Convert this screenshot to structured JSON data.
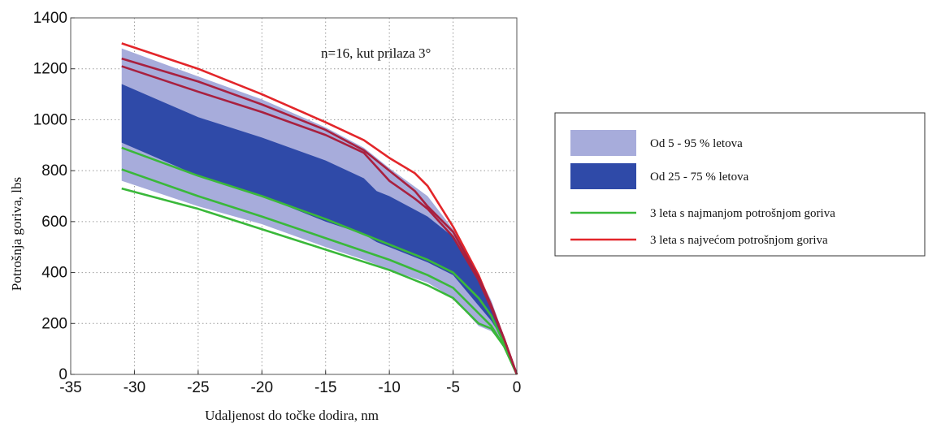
{
  "chart_data": {
    "type": "area",
    "annotation": "n=16, kut prilaza 3°",
    "xlabel": "Udaljenost do točke dodira, nm",
    "ylabel": "Potrošnja goriva, lbs",
    "xlim": [
      -35,
      0
    ],
    "ylim": [
      0,
      1400
    ],
    "xticks": [
      -35,
      -30,
      -25,
      -20,
      -15,
      -10,
      -5,
      0
    ],
    "yticks": [
      0,
      200,
      400,
      600,
      800,
      1000,
      1200,
      1400
    ],
    "grid": true,
    "legend_position": "right, outside plot",
    "bands": [
      {
        "name": "Od 5 - 95 % letova",
        "color": "#a7acdb",
        "x": [
          -31,
          -25,
          -20,
          -15,
          -12,
          -10,
          -7,
          -5,
          -3,
          -2,
          -1,
          0
        ],
        "upper": [
          1280,
          1170,
          1080,
          970,
          890,
          810,
          700,
          570,
          390,
          290,
          150,
          0
        ],
        "lower": [
          760,
          660,
          590,
          500,
          450,
          410,
          360,
          300,
          190,
          170,
          110,
          0
        ]
      },
      {
        "name": "Od 25 - 75 % letova",
        "color": "#2f4aa8",
        "x": [
          -31,
          -25,
          -20,
          -15,
          -12,
          -11,
          -10,
          -7,
          -5,
          -3,
          -2,
          -1,
          0
        ],
        "upper": [
          1140,
          1010,
          930,
          840,
          770,
          720,
          700,
          620,
          540,
          380,
          280,
          150,
          0
        ],
        "lower": [
          910,
          780,
          700,
          600,
          550,
          520,
          500,
          440,
          390,
          270,
          210,
          130,
          0
        ]
      }
    ],
    "series": [
      {
        "group": "3 leta s najmanjom potrošnjom goriva",
        "color": "#3ab83a",
        "x": [
          -31,
          -25,
          -20,
          -15,
          -10,
          -7,
          -5,
          -3,
          -2,
          -1,
          0
        ],
        "y": [
          890,
          780,
          700,
          610,
          510,
          450,
          400,
          300,
          230,
          120,
          0
        ]
      },
      {
        "group": "3 leta s najmanjom potrošnjom goriva",
        "color": "#3ab83a",
        "x": [
          -31,
          -25,
          -20,
          -15,
          -10,
          -7,
          -5,
          -3,
          -2,
          -1,
          0
        ],
        "y": [
          805,
          700,
          620,
          535,
          450,
          390,
          340,
          240,
          190,
          110,
          0
        ]
      },
      {
        "group": "3 leta s najmanjom potrošnjom goriva",
        "color": "#3ab83a",
        "x": [
          -31,
          -25,
          -20,
          -15,
          -10,
          -7,
          -5,
          -4,
          -3,
          -2,
          -1,
          0
        ],
        "y": [
          730,
          650,
          570,
          490,
          410,
          350,
          300,
          250,
          200,
          180,
          110,
          0
        ]
      },
      {
        "group": "3 leta s najvećom potrošnjom goriva",
        "color": "#e3262a",
        "x": [
          -31,
          -25,
          -20,
          -15,
          -12,
          -10,
          -8,
          -7,
          -5,
          -3,
          -2,
          -1,
          0
        ],
        "y": [
          1300,
          1200,
          1100,
          990,
          920,
          850,
          790,
          740,
          580,
          390,
          270,
          140,
          0
        ]
      },
      {
        "group": "3 leta s najvećom potrošnjom goriva",
        "color": "#a8203f",
        "x": [
          -31,
          -25,
          -20,
          -15,
          -12,
          -10,
          -8,
          -7,
          -5,
          -3,
          -2,
          -1,
          0
        ],
        "y": [
          1240,
          1150,
          1060,
          960,
          880,
          800,
          720,
          660,
          560,
          380,
          270,
          140,
          0
        ]
      },
      {
        "group": "3 leta s najvećom potrošnjom goriva",
        "color": "#a8203f",
        "x": [
          -31,
          -25,
          -20,
          -15,
          -12,
          -10,
          -8,
          -7,
          -5,
          -3,
          -2,
          -1,
          0
        ],
        "y": [
          1210,
          1110,
          1030,
          940,
          870,
          760,
          690,
          650,
          540,
          370,
          260,
          140,
          0
        ]
      }
    ]
  },
  "legend": {
    "items": [
      {
        "label": "Od 5 - 95 % letova",
        "kind": "band",
        "color": "#a7acdb"
      },
      {
        "label": "Od 25 - 75 % letova",
        "kind": "band",
        "color": "#2f4aa8"
      },
      {
        "label": "3 leta s najmanjom potrošnjom goriva",
        "kind": "line",
        "color": "#3ab83a"
      },
      {
        "label": "3 leta s najvećom potrošnjom goriva",
        "kind": "line",
        "color": "#e3262a"
      }
    ]
  }
}
